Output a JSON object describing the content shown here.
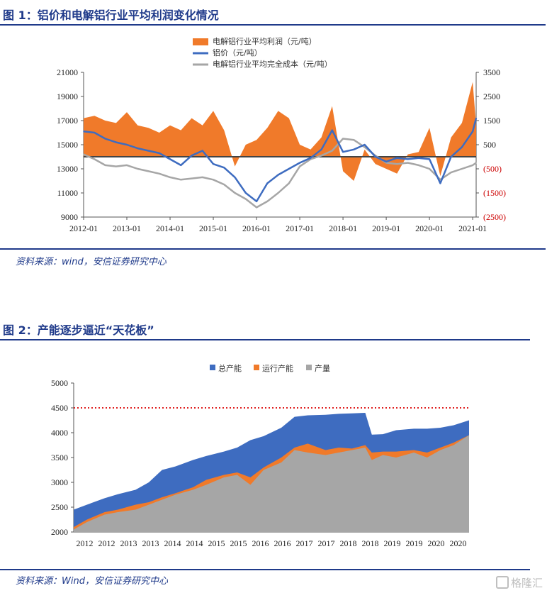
{
  "figure1": {
    "label": "图 1：铝价和电解铝行业平均利润变化情况",
    "source": "资料来源：wind，安信证券研究中心"
  },
  "figure2": {
    "label": "图 2：产能逐步逼近“天花板”",
    "source": "资料来源：Wind，安信证券研究中心"
  },
  "watermark": "格隆汇",
  "colors": {
    "title": "#1f3a8a",
    "profit": "#f07a2a",
    "price": "#3e6cc0",
    "cost": "#a6a6a6",
    "total_capacity": "#3e6cc0",
    "running_capacity": "#f07a2a",
    "output": "#a6a6a6",
    "ceiling_line": "#e02020"
  },
  "chart_data": [
    {
      "type": "area",
      "legend": [
        "电解铝行业平均利润（元/吨）",
        "铝价（元/吨）",
        "电解铝行业平均完全成本（元/吨）"
      ],
      "x_ticks": [
        "2012-01",
        "2013-01",
        "2014-01",
        "2015-01",
        "2016-01",
        "2017-01",
        "2018-01",
        "2019-01",
        "2020-01",
        "2021-01"
      ],
      "y_left_ticks": [
        "21000",
        "19000",
        "17000",
        "15000",
        "13000",
        "11000",
        "9000"
      ],
      "y_left_lim": [
        9000,
        21000
      ],
      "y_right_ticks": [
        "3500",
        "2500",
        "1500",
        "500",
        "(500)",
        "(1500)",
        "(2500)"
      ],
      "y_right_lim": [
        -2500,
        3500
      ],
      "x_range": [
        2012.0,
        2021.08
      ],
      "series": [
        {
          "name": "电解铝行业平均利润（元/吨）",
          "axis": "right",
          "x": [
            2012.0,
            2012.25,
            2012.5,
            2012.75,
            2013.0,
            2013.25,
            2013.5,
            2013.75,
            2014.0,
            2014.25,
            2014.5,
            2014.75,
            2015.0,
            2015.25,
            2015.5,
            2015.75,
            2016.0,
            2016.25,
            2016.5,
            2016.75,
            2017.0,
            2017.25,
            2017.5,
            2017.75,
            2018.0,
            2018.25,
            2018.5,
            2018.75,
            2019.0,
            2019.25,
            2019.5,
            2019.75,
            2020.0,
            2020.25,
            2020.5,
            2020.75,
            2021.0,
            2021.08
          ],
          "values": [
            1600,
            1700,
            1500,
            1400,
            1850,
            1300,
            1200,
            1000,
            1300,
            1100,
            1600,
            1300,
            1900,
            1100,
            -400,
            500,
            700,
            1200,
            1900,
            1600,
            500,
            300,
            800,
            2100,
            -600,
            -1000,
            300,
            -300,
            -500,
            -700,
            100,
            200,
            1200,
            -800,
            800,
            1400,
            3100,
            1300
          ]
        },
        {
          "name": "铝价（元/吨）",
          "axis": "left",
          "x": [
            2012.0,
            2012.25,
            2012.5,
            2012.75,
            2013.0,
            2013.25,
            2013.5,
            2013.75,
            2014.0,
            2014.25,
            2014.5,
            2014.75,
            2015.0,
            2015.25,
            2015.5,
            2015.75,
            2016.0,
            2016.25,
            2016.5,
            2016.75,
            2017.0,
            2017.25,
            2017.5,
            2017.75,
            2018.0,
            2018.25,
            2018.5,
            2018.75,
            2019.0,
            2019.25,
            2019.5,
            2019.75,
            2020.0,
            2020.25,
            2020.5,
            2020.75,
            2021.0,
            2021.08
          ],
          "values": [
            16100,
            16000,
            15500,
            15200,
            15000,
            14700,
            14500,
            14300,
            13800,
            13300,
            14100,
            14500,
            13400,
            13100,
            12300,
            11000,
            10300,
            11800,
            12500,
            13000,
            13500,
            13900,
            14600,
            16200,
            14400,
            14600,
            15000,
            14000,
            13600,
            13900,
            13800,
            13900,
            13800,
            11800,
            14000,
            14800,
            16100,
            17200
          ]
        },
        {
          "name": "电解铝行业平均完全成本（元/吨）",
          "axis": "left",
          "x": [
            2012.0,
            2012.25,
            2012.5,
            2012.75,
            2013.0,
            2013.25,
            2013.5,
            2013.75,
            2014.0,
            2014.25,
            2014.5,
            2014.75,
            2015.0,
            2015.25,
            2015.5,
            2015.75,
            2016.0,
            2016.25,
            2016.5,
            2016.75,
            2017.0,
            2017.25,
            2017.5,
            2017.75,
            2018.0,
            2018.25,
            2018.5,
            2018.75,
            2019.0,
            2019.25,
            2019.5,
            2019.75,
            2020.0,
            2020.25,
            2020.5,
            2020.75,
            2021.0,
            2021.08
          ],
          "values": [
            14200,
            13800,
            13300,
            13200,
            13300,
            13000,
            12800,
            12600,
            12300,
            12100,
            12200,
            12300,
            12100,
            11700,
            11000,
            10500,
            9800,
            10300,
            11000,
            11800,
            13200,
            13800,
            14100,
            14500,
            15500,
            15400,
            14800,
            14100,
            13500,
            13400,
            13500,
            13300,
            13000,
            12100,
            12700,
            13000,
            13300,
            13500
          ]
        }
      ]
    },
    {
      "type": "area",
      "legend": [
        "总产能",
        "运行产能",
        "产量"
      ],
      "x_ticks": [
        "2012",
        "2012",
        "2013",
        "2013",
        "2014",
        "2014",
        "2015",
        "2015",
        "2016",
        "2016",
        "2017",
        "2017",
        "2018",
        "2018",
        "2019",
        "2019",
        "2020",
        "2020"
      ],
      "y_ticks": [
        "5000",
        "4500",
        "4000",
        "3500",
        "3000",
        "2500",
        "2000"
      ],
      "ylim": [
        2000,
        5000
      ],
      "reference_line": 4500,
      "x_range": [
        2012.0,
        2020.95
      ],
      "series": [
        {
          "name": "总产能",
          "x": [
            2012.0,
            2012.3,
            2012.7,
            2013.0,
            2013.4,
            2013.7,
            2014.0,
            2014.3,
            2014.7,
            2015.0,
            2015.4,
            2015.7,
            2016.0,
            2016.3,
            2016.7,
            2017.0,
            2017.3,
            2017.7,
            2018.0,
            2018.3,
            2018.6,
            2018.75,
            2019.0,
            2019.3,
            2019.7,
            2020.0,
            2020.3,
            2020.6,
            2020.95
          ],
          "values": [
            2450,
            2550,
            2680,
            2760,
            2850,
            3000,
            3250,
            3320,
            3450,
            3530,
            3620,
            3700,
            3850,
            3930,
            4100,
            4320,
            4350,
            4360,
            4380,
            4390,
            4400,
            3960,
            3970,
            4050,
            4080,
            4080,
            4100,
            4150,
            4250
          ]
        },
        {
          "name": "运行产能",
          "x": [
            2012.0,
            2012.3,
            2012.7,
            2013.0,
            2013.4,
            2013.7,
            2014.0,
            2014.3,
            2014.7,
            2015.0,
            2015.4,
            2015.7,
            2016.0,
            2016.3,
            2016.7,
            2017.0,
            2017.3,
            2017.7,
            2018.0,
            2018.3,
            2018.6,
            2018.75,
            2019.0,
            2019.3,
            2019.7,
            2020.0,
            2020.3,
            2020.6,
            2020.95
          ],
          "values": [
            2100,
            2250,
            2400,
            2450,
            2550,
            2600,
            2700,
            2780,
            2900,
            3050,
            3150,
            3200,
            3100,
            3300,
            3500,
            3700,
            3780,
            3650,
            3700,
            3680,
            3750,
            3600,
            3620,
            3620,
            3650,
            3600,
            3700,
            3800,
            3950
          ]
        },
        {
          "name": "产量",
          "x": [
            2012.0,
            2012.3,
            2012.7,
            2013.0,
            2013.4,
            2013.7,
            2014.0,
            2014.3,
            2014.7,
            2015.0,
            2015.4,
            2015.7,
            2016.0,
            2016.3,
            2016.7,
            2017.0,
            2017.3,
            2017.7,
            2018.0,
            2018.3,
            2018.6,
            2018.75,
            2019.0,
            2019.3,
            2019.7,
            2020.0,
            2020.3,
            2020.6,
            2020.95
          ],
          "values": [
            2050,
            2200,
            2350,
            2400,
            2450,
            2550,
            2650,
            2750,
            2850,
            2950,
            3100,
            3150,
            2950,
            3250,
            3400,
            3650,
            3600,
            3550,
            3600,
            3650,
            3700,
            3450,
            3550,
            3500,
            3600,
            3500,
            3650,
            3750,
            3950
          ]
        }
      ]
    }
  ]
}
